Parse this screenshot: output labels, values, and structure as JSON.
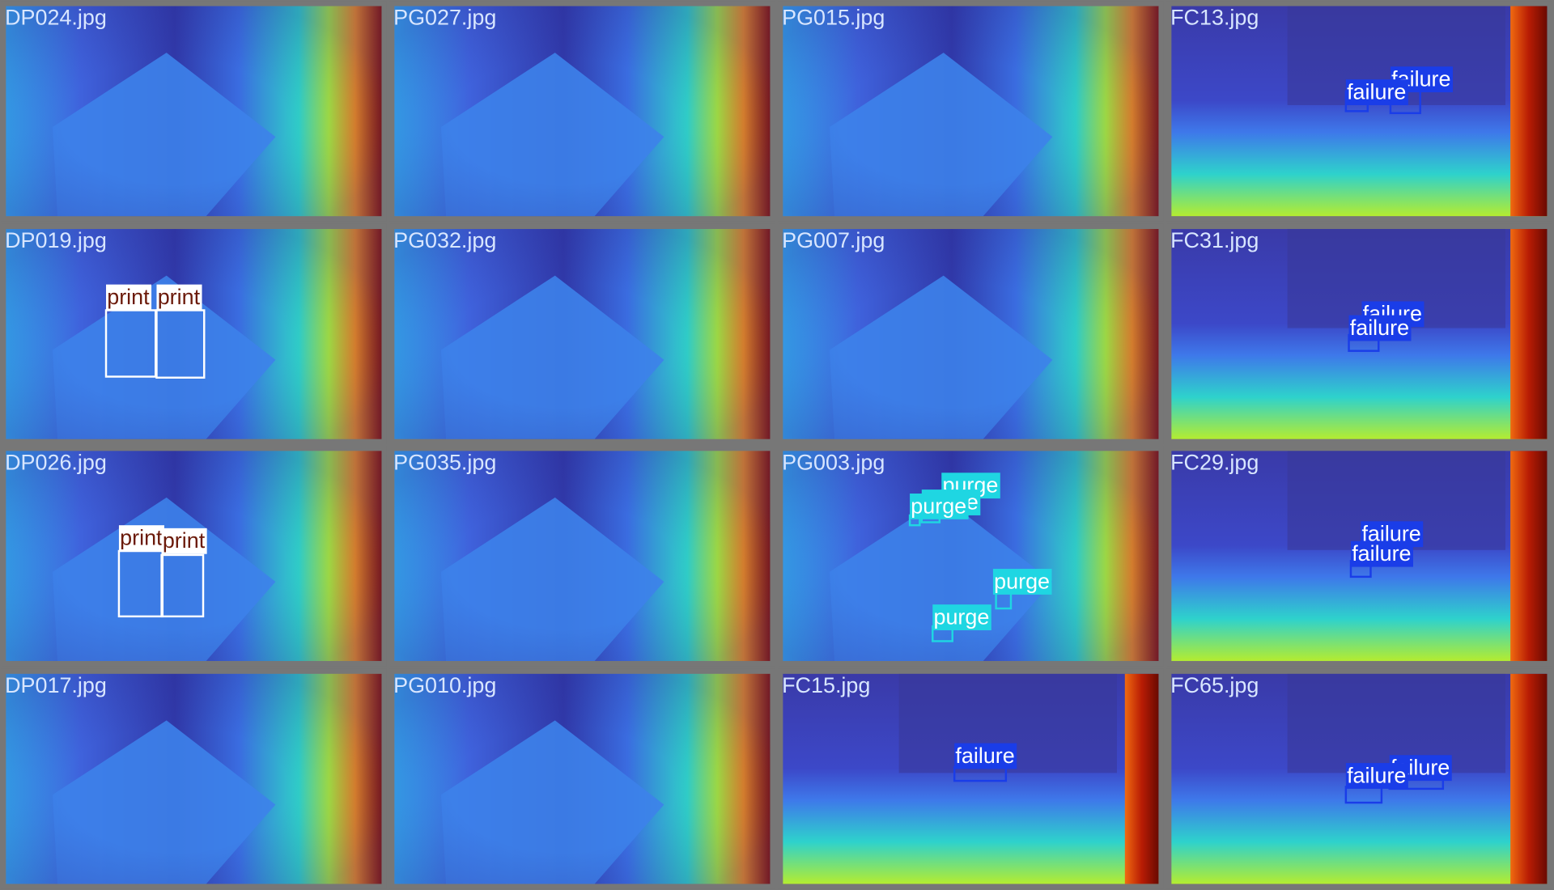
{
  "tiles": [
    {
      "filename": "DP024.jpg",
      "detections": []
    },
    {
      "filename": "PG027.jpg",
      "detections": []
    },
    {
      "filename": "PG015.jpg",
      "detections": []
    },
    {
      "filename": "FC13.jpg",
      "detections": [
        {
          "label": "failure"
        },
        {
          "label": "failure"
        }
      ]
    },
    {
      "filename": "DP019.jpg",
      "detections": [
        {
          "label": "print"
        },
        {
          "label": "print"
        }
      ]
    },
    {
      "filename": "PG032.jpg",
      "detections": []
    },
    {
      "filename": "PG007.jpg",
      "detections": []
    },
    {
      "filename": "FC31.jpg",
      "detections": [
        {
          "label": "failure"
        },
        {
          "label": "failure"
        }
      ]
    },
    {
      "filename": "DP026.jpg",
      "detections": [
        {
          "label": "print"
        },
        {
          "label": "print"
        }
      ]
    },
    {
      "filename": "PG035.jpg",
      "detections": []
    },
    {
      "filename": "PG003.jpg",
      "detections": [
        {
          "label": "purge"
        },
        {
          "label": "purge"
        },
        {
          "label": "purge"
        },
        {
          "label": "purge"
        },
        {
          "label": "purge"
        }
      ]
    },
    {
      "filename": "FC29.jpg",
      "detections": [
        {
          "label": "failure"
        },
        {
          "label": "failure"
        }
      ]
    },
    {
      "filename": "DP017.jpg",
      "detections": []
    },
    {
      "filename": "PG010.jpg",
      "detections": []
    },
    {
      "filename": "FC15.jpg",
      "detections": [
        {
          "label": "failure"
        }
      ]
    },
    {
      "filename": "FC65.jpg",
      "detections": [
        {
          "label": "failure"
        },
        {
          "label": "failure"
        }
      ]
    }
  ]
}
